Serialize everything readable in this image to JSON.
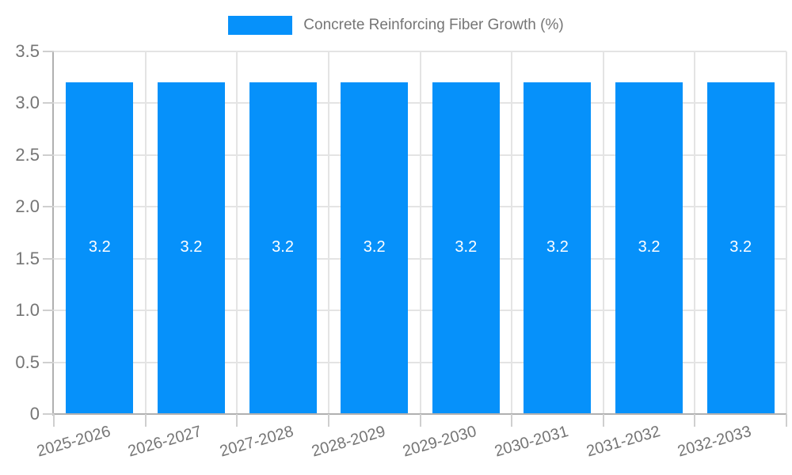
{
  "chart_data": {
    "type": "bar",
    "title": "Concrete Reinforcing Fiber Growth (%)",
    "categories": [
      "2025-2026",
      "2026-2027",
      "2027-2028",
      "2028-2029",
      "2029-2030",
      "2030-2031",
      "2031-2032",
      "2032-2033"
    ],
    "values": [
      3.2,
      3.2,
      3.2,
      3.2,
      3.2,
      3.2,
      3.2,
      3.2
    ],
    "bar_labels": [
      "3.2",
      "3.2",
      "3.2",
      "3.2",
      "3.2",
      "3.2",
      "3.2",
      "3.2"
    ],
    "xlabel": "",
    "ylabel": "",
    "ylim": [
      0,
      3.5
    ],
    "yticks": [
      0,
      0.5,
      1.0,
      1.5,
      2.0,
      2.5,
      3.0,
      3.5
    ],
    "ytick_labels": [
      "0",
      "0.5",
      "1.0",
      "1.5",
      "2.0",
      "2.5",
      "3.0",
      "3.5"
    ],
    "grid": true,
    "legend_position": "top-center",
    "colors": {
      "bar": "#0691fa",
      "axis": "#b0b0b0",
      "grid": "#e4e4e4",
      "tick": "#cfcfcf",
      "tick_text": "#757575",
      "value_label": "#ffffff"
    }
  },
  "legend": {
    "label": "Concrete Reinforcing Fiber Growth (%)"
  }
}
